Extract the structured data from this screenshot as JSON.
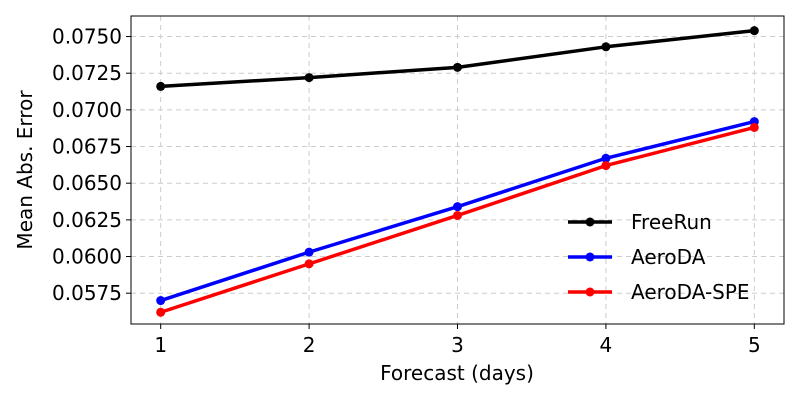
{
  "chart_data": {
    "type": "line",
    "title": "",
    "xlabel": "Forecast (days)",
    "ylabel": "Mean Abs. Error",
    "x": [
      1,
      2,
      3,
      4,
      5
    ],
    "x_ticks": [
      "1",
      "2",
      "3",
      "4",
      "5"
    ],
    "xlim": [
      0.8,
      5.2
    ],
    "ylim": [
      0.0554,
      0.0764
    ],
    "y_ticks": [
      0.0575,
      0.06,
      0.0625,
      0.065,
      0.0675,
      0.07,
      0.0725,
      0.075
    ],
    "y_tick_labels": [
      "0.0575",
      "0.0600",
      "0.0625",
      "0.0650",
      "0.0675",
      "0.0700",
      "0.0725",
      "0.0750"
    ],
    "grid": true,
    "legend_position": "bottom-right",
    "series": [
      {
        "name": "FreeRun",
        "color": "#000000",
        "values": [
          0.0716,
          0.0722,
          0.0729,
          0.0743,
          0.0754
        ]
      },
      {
        "name": "AeroDA",
        "color": "#0000ff",
        "values": [
          0.057,
          0.0603,
          0.0634,
          0.0667,
          0.0692
        ]
      },
      {
        "name": "AeroDA-SPE",
        "color": "#ff0000",
        "values": [
          0.0562,
          0.0595,
          0.0628,
          0.0662,
          0.0688
        ]
      }
    ]
  }
}
